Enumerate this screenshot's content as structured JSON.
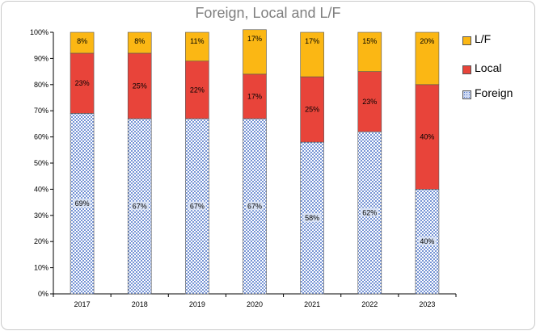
{
  "chart_data": {
    "type": "bar",
    "stacked": true,
    "title": "Foreign, Local and L/F",
    "categories": [
      "2017",
      "2018",
      "2019",
      "2020",
      "2021",
      "2022",
      "2023"
    ],
    "series": [
      {
        "name": "Foreign",
        "color": "#6d8fd9",
        "values": [
          69,
          67,
          67,
          67,
          58,
          62,
          40
        ],
        "labels": [
          "69%",
          "67%",
          "67%",
          "67%",
          "58%",
          "62%",
          "40%"
        ]
      },
      {
        "name": "Local",
        "color": "#e8443a",
        "values": [
          23,
          25,
          22,
          17,
          25,
          23,
          40
        ],
        "labels": [
          "23%",
          "25%",
          "22%",
          "17%",
          "25%",
          "23%",
          "40%"
        ]
      },
      {
        "name": "L/F",
        "color": "#fbb714",
        "values": [
          8,
          8,
          11,
          17,
          17,
          15,
          20
        ],
        "labels": [
          "8%",
          "8%",
          "11%",
          "17%",
          "17%",
          "15%",
          "20%"
        ]
      }
    ],
    "y_ticks": [
      "0%",
      "10%",
      "20%",
      "30%",
      "40%",
      "50%",
      "60%",
      "70%",
      "80%",
      "90%",
      "100%"
    ],
    "ylim": [
      0,
      100
    ],
    "legend_position": "right",
    "legend": [
      "L/F",
      "Local",
      "Foreign"
    ],
    "grid": false
  }
}
